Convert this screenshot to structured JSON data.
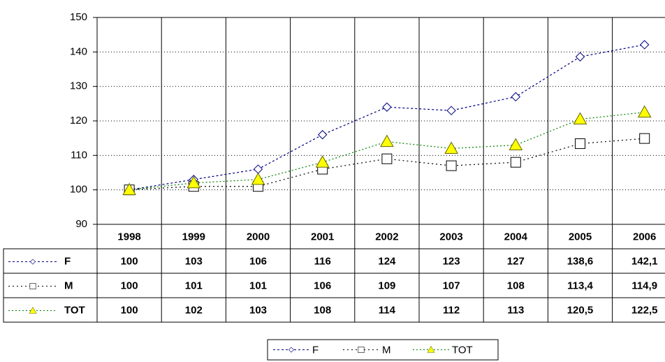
{
  "chart_data": {
    "type": "line",
    "categories": [
      "1998",
      "1999",
      "2000",
      "2001",
      "2002",
      "2003",
      "2004",
      "2005",
      "2006"
    ],
    "series": [
      {
        "name": "F",
        "color": "#000080",
        "marker": "diamond",
        "values": [
          100,
          103,
          106,
          116,
          124,
          123,
          127,
          138.6,
          142.1
        ],
        "value_labels": [
          "100",
          "103",
          "106",
          "116",
          "124",
          "123",
          "127",
          "138,6",
          "142,1"
        ]
      },
      {
        "name": "M",
        "color": "#000000",
        "marker": "square",
        "values": [
          100,
          101,
          101,
          106,
          109,
          107,
          108,
          113.4,
          114.9
        ],
        "value_labels": [
          "100",
          "101",
          "101",
          "106",
          "109",
          "107",
          "108",
          "113,4",
          "114,9"
        ]
      },
      {
        "name": "TOT",
        "color": "#008000",
        "marker": "triangle",
        "values": [
          100,
          102,
          103,
          108,
          114,
          112,
          113,
          120.5,
          122.5
        ],
        "value_labels": [
          "100",
          "102",
          "103",
          "108",
          "114",
          "112",
          "113",
          "120,5",
          "122,5"
        ]
      }
    ],
    "ylim": [
      90,
      150
    ],
    "yticks": [
      90,
      100,
      110,
      120,
      130,
      140,
      150
    ],
    "grid": true,
    "legend": "bottom"
  }
}
